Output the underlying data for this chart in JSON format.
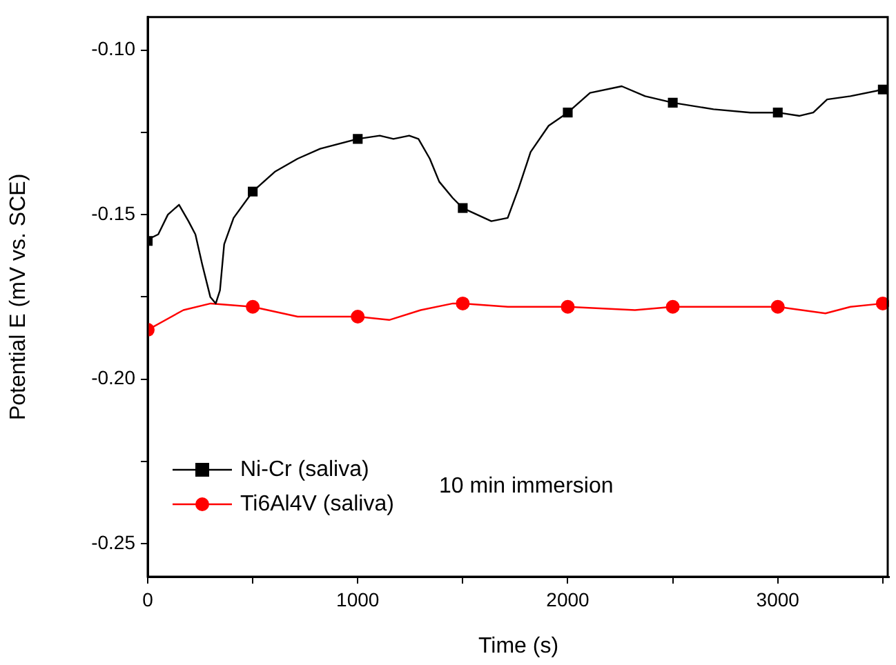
{
  "chart_data": {
    "type": "line",
    "xlabel": "Time (s)",
    "ylabel": "Potential E (mV vs. SCE)",
    "xlim": [
      0,
      3530
    ],
    "ylim": [
      -0.26,
      -0.09
    ],
    "xticks": [
      0,
      {
        "value": 500,
        "label": null
      },
      1000,
      {
        "value": 1500,
        "label": null
      },
      2000,
      {
        "value": 2500,
        "label": null
      },
      3000,
      {
        "value": 3500,
        "label": null
      }
    ],
    "yticks": [
      {
        "value": -0.25,
        "label": "-0.25"
      },
      {
        "value": -0.225,
        "label": null
      },
      {
        "value": -0.2,
        "label": "-0.20"
      },
      {
        "value": -0.175,
        "label": null
      },
      {
        "value": -0.15,
        "label": "-0.15"
      },
      {
        "value": -0.125,
        "label": null
      },
      {
        "value": -0.1,
        "label": "-0.10"
      }
    ],
    "grid": false,
    "legend": "bottom left",
    "line_style": "solid",
    "annotations": [
      "10 min immersion"
    ],
    "series": [
      {
        "color": "#000000",
        "marker": "none",
        "x": [
          0,
          18,
          50,
          96,
          149,
          194,
          227,
          259,
          298,
          324,
          344,
          364,
          409,
          500,
          605,
          714,
          821,
          1000,
          1105,
          1170,
          1245,
          1289,
          1343,
          1388,
          1453,
          1500,
          1636,
          1714,
          1766,
          1823,
          1909,
          2000,
          2106,
          2257,
          2368,
          2500,
          2694,
          2870,
          3000,
          3104,
          3169,
          3235,
          3346,
          3500
        ],
        "values": [
          -0.158,
          -0.157,
          -0.156,
          -0.15,
          -0.147,
          -0.152,
          -0.156,
          -0.165,
          -0.175,
          -0.177,
          -0.173,
          -0.159,
          -0.151,
          -0.143,
          -0.137,
          -0.133,
          -0.13,
          -0.127,
          -0.126,
          -0.127,
          -0.126,
          -0.127,
          -0.133,
          -0.14,
          -0.145,
          -0.148,
          -0.152,
          -0.151,
          -0.142,
          -0.131,
          -0.123,
          -0.119,
          -0.113,
          -0.111,
          -0.114,
          -0.116,
          -0.118,
          -0.119,
          -0.119,
          -0.12,
          -0.119,
          -0.115,
          -0.114,
          -0.112
        ]
      },
      {
        "color": "#ff0000",
        "marker": "none",
        "x": [
          0,
          170,
          300,
          500,
          714,
          1000,
          1150,
          1300,
          1453,
          1500,
          1715,
          2000,
          2320,
          2500,
          2870,
          3000,
          3227,
          3346,
          3500
        ],
        "values": [
          -0.185,
          -0.179,
          -0.177,
          -0.178,
          -0.181,
          -0.181,
          -0.182,
          -0.179,
          -0.177,
          -0.177,
          -0.178,
          -0.178,
          -0.179,
          -0.178,
          -0.178,
          -0.178,
          -0.18,
          -0.178,
          -0.177
        ]
      },
      {
        "type": "scatter",
        "name": "Ni-Cr (saliva)",
        "color": "#000000",
        "marker": "square",
        "x": [
          0,
          500,
          1000,
          1500,
          2000,
          2500,
          3000,
          3500
        ],
        "values": [
          -0.158,
          -0.143,
          -0.127,
          -0.148,
          -0.119,
          -0.116,
          -0.119,
          -0.112
        ]
      },
      {
        "type": "scatter",
        "name": "Ti6Al4V (saliva)",
        "color": "#ff0000",
        "marker": "circle",
        "x": [
          0,
          500,
          1000,
          1500,
          2000,
          2500,
          3000,
          3500
        ],
        "values": [
          -0.185,
          -0.178,
          -0.181,
          -0.177,
          -0.178,
          -0.178,
          -0.178,
          -0.177
        ]
      }
    ]
  }
}
